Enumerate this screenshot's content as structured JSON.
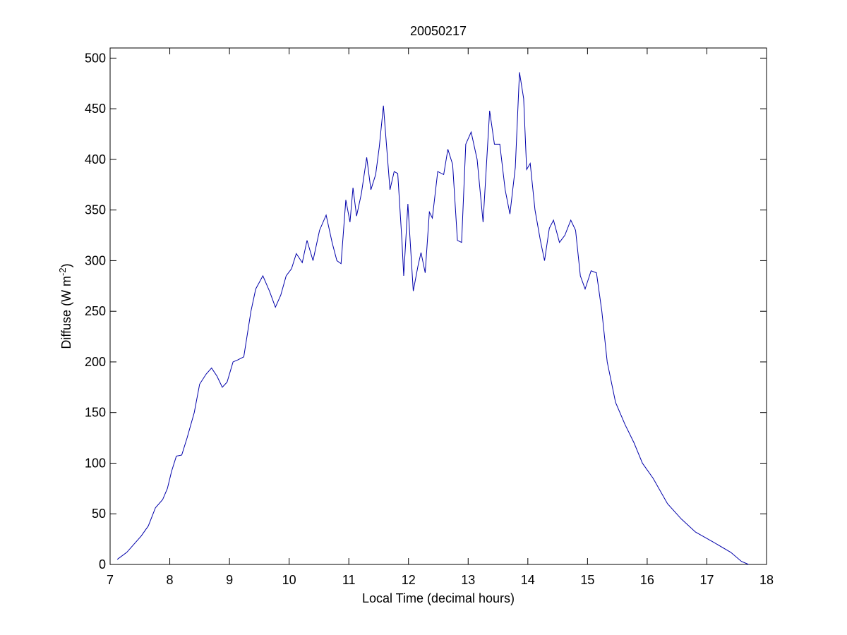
{
  "chart_data": {
    "type": "line",
    "title": "20050217",
    "xlabel": "Local Time (decimal hours)",
    "ylabel": [
      "Diffuse (W m",
      "-2",
      ")"
    ],
    "xlim": [
      7,
      18
    ],
    "ylim": [
      0,
      510
    ],
    "xticks": [
      7,
      8,
      9,
      10,
      11,
      12,
      13,
      14,
      15,
      16,
      17,
      18
    ],
    "yticks": [
      0,
      50,
      100,
      150,
      200,
      250,
      300,
      350,
      400,
      450,
      500
    ],
    "grid": false,
    "series": [
      {
        "color": "#0000aa",
        "x": [
          7.12,
          7.28,
          7.52,
          7.64,
          7.76,
          7.88,
          7.96,
          8.03,
          8.11,
          8.2,
          8.29,
          8.41,
          8.5,
          8.61,
          8.7,
          8.79,
          8.88,
          8.96,
          9.06,
          9.14,
          9.24,
          9.36,
          9.44,
          9.56,
          9.67,
          9.77,
          9.86,
          9.95,
          10.04,
          10.12,
          10.22,
          10.3,
          10.4,
          10.51,
          10.62,
          10.72,
          10.8,
          10.87,
          10.95,
          11.02,
          11.07,
          11.13,
          11.21,
          11.3,
          11.37,
          11.45,
          11.51,
          11.58,
          11.69,
          11.76,
          11.82,
          11.89,
          11.92,
          11.99,
          12.08,
          12.16,
          12.21,
          12.28,
          12.35,
          12.4,
          12.49,
          12.59,
          12.66,
          12.74,
          12.82,
          12.89,
          12.96,
          13.05,
          13.15,
          13.25,
          13.36,
          13.44,
          13.53,
          13.62,
          13.7,
          13.79,
          13.86,
          13.93,
          13.98,
          14.04,
          14.12,
          14.21,
          14.28,
          14.36,
          14.43,
          14.53,
          14.62,
          14.72,
          14.8,
          14.88,
          14.96,
          15.06,
          15.15,
          15.24,
          15.33,
          15.47,
          15.63,
          15.78,
          15.92,
          16.1,
          16.34,
          16.57,
          16.81,
          17.11,
          17.4,
          17.58,
          17.7
        ],
        "values": [
          5,
          12,
          28,
          38,
          56,
          64,
          75,
          92,
          107,
          108,
          125,
          150,
          178,
          188,
          194,
          186,
          175,
          180,
          200,
          202,
          205,
          250,
          272,
          285,
          270,
          254,
          266,
          285,
          292,
          307,
          298,
          320,
          300,
          330,
          345,
          318,
          300,
          297,
          360,
          338,
          372,
          344,
          366,
          402,
          370,
          385,
          412,
          453,
          370,
          388,
          386,
          320,
          285,
          356,
          270,
          295,
          308,
          288,
          348,
          342,
          388,
          385,
          410,
          395,
          320,
          318,
          415,
          427,
          400,
          338,
          448,
          415,
          415,
          370,
          346,
          392,
          486,
          460,
          390,
          396,
          350,
          320,
          300,
          332,
          340,
          318,
          325,
          340,
          330,
          285,
          272,
          290,
          288,
          250,
          200,
          160,
          138,
          120,
          100,
          85,
          60,
          45,
          32,
          22,
          12,
          3,
          0
        ]
      }
    ]
  }
}
